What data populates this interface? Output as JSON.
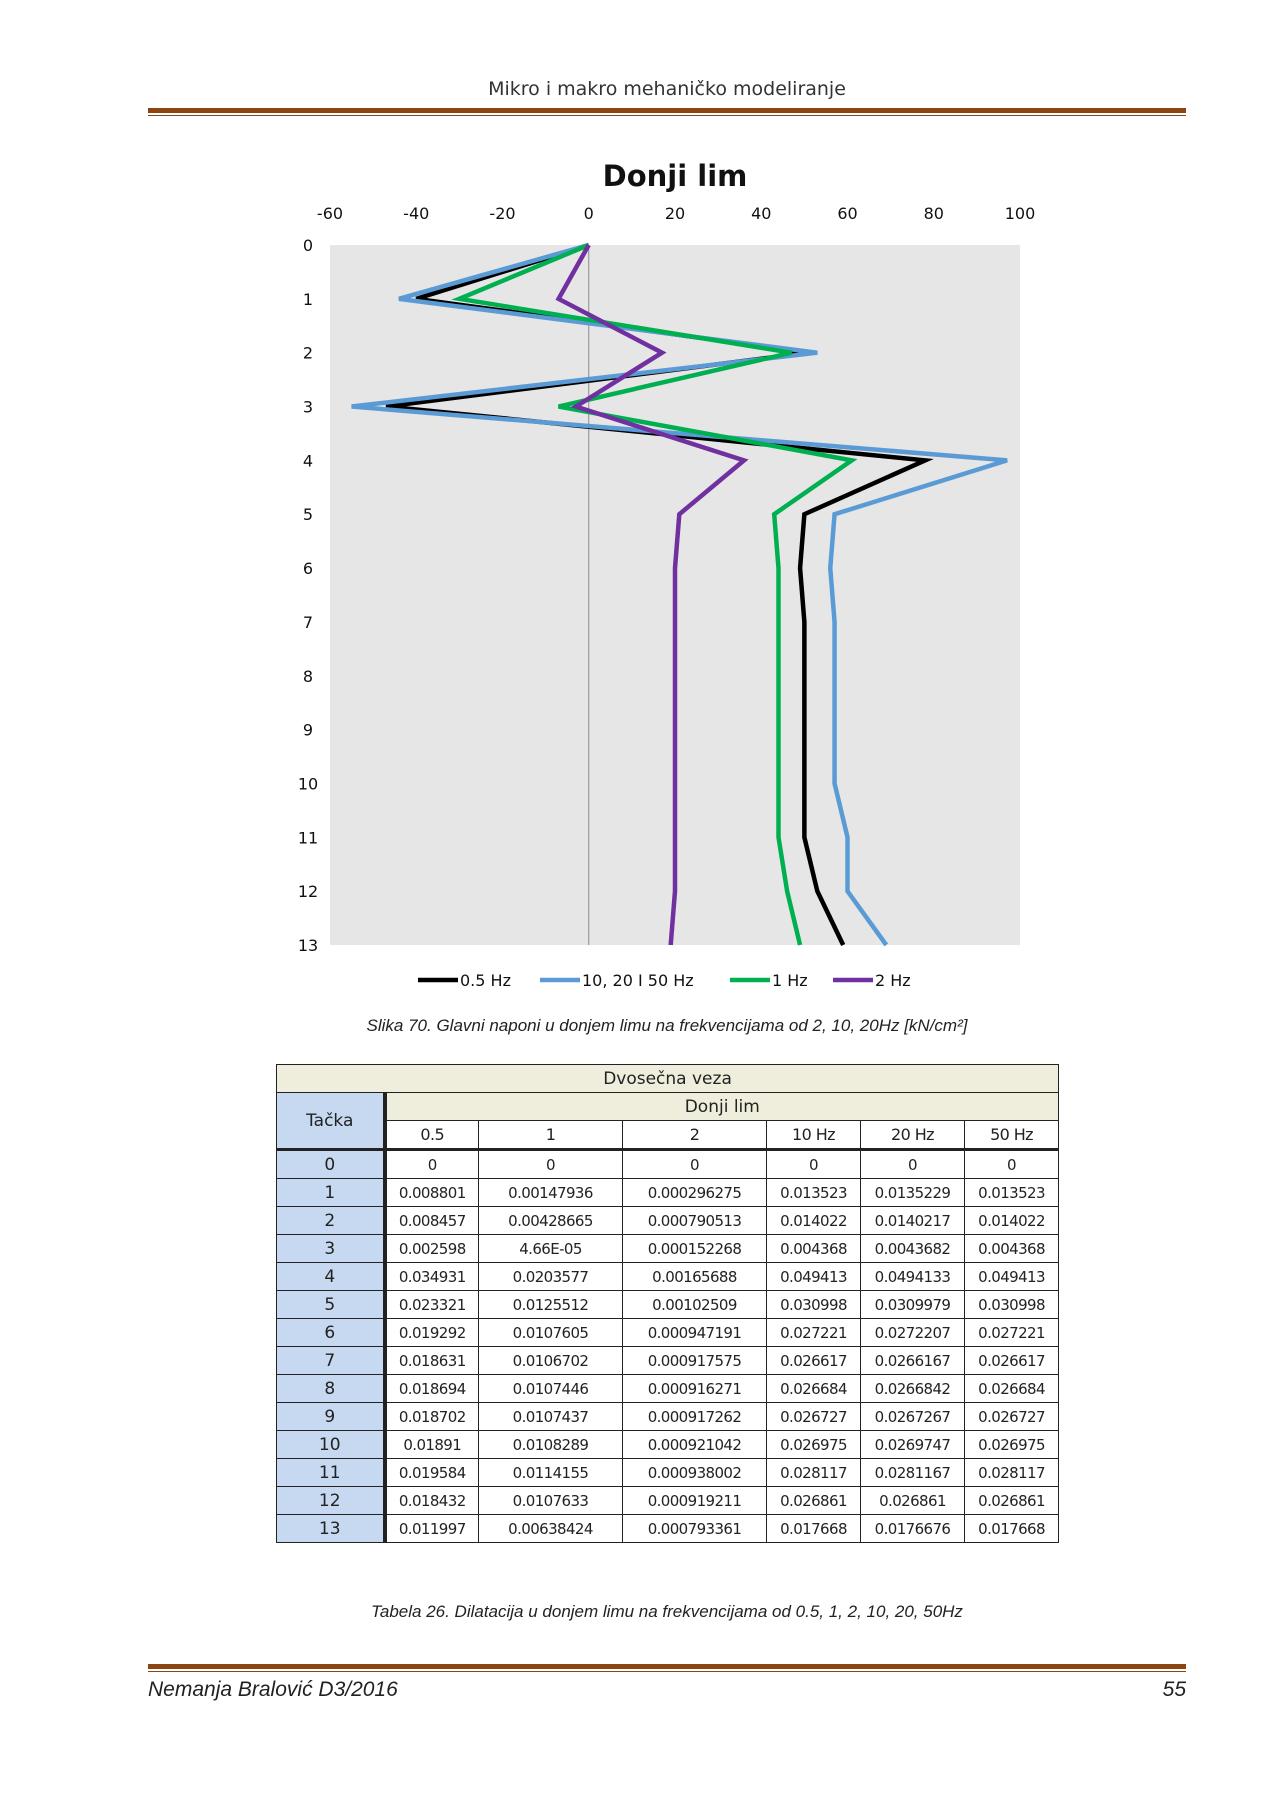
{
  "running_head": "Mikro i makro mehaničko modeliranje",
  "figure_caption": "Slika 70. Glavni naponi u donjem  limu na frekvencijama od 2, 10, 20Hz  [kN/cm²]",
  "chart_data": {
    "type": "line",
    "orientation": "vertical-profile",
    "title": "Donji lim",
    "xlabel": "",
    "ylabel": "",
    "x_axis_position": "top",
    "xlim": [
      -60,
      100
    ],
    "x_ticks": [
      "-60",
      "-40",
      "-20",
      "0",
      "20",
      "40",
      "60",
      "80",
      "100"
    ],
    "y_ticks": [
      "0",
      "1",
      "2",
      "3",
      "4",
      "5",
      "6",
      "7",
      "8",
      "9",
      "10",
      "11",
      "12",
      "13"
    ],
    "ylim": [
      0,
      13
    ],
    "y_inverted": true,
    "grid": false,
    "plot_background": "#e6e6e6",
    "legend_position": "bottom",
    "points": [
      0,
      1,
      2,
      3,
      4,
      5,
      6,
      7,
      8,
      9,
      10,
      11,
      12,
      13
    ],
    "series": [
      {
        "name": "0.5 Hz",
        "color": "#000000",
        "values": [
          0,
          -40,
          51,
          -47,
          78,
          50,
          49,
          50,
          50,
          50,
          50,
          50,
          53,
          59
        ]
      },
      {
        "name": "10, 20 I 50 Hz",
        "color": "#5b9bd5",
        "values": [
          0,
          -44,
          53,
          -55,
          97,
          57,
          56,
          57,
          57,
          57,
          57,
          60,
          60,
          69
        ]
      },
      {
        "name": "1 Hz",
        "color": "#00b050",
        "values": [
          0,
          -30,
          47,
          -7,
          61,
          43,
          44,
          44,
          44,
          44,
          44,
          44,
          46,
          49
        ]
      },
      {
        "name": "2 Hz",
        "color": "#7030a0",
        "values": [
          0,
          -7,
          17,
          -3,
          36,
          21,
          20,
          20,
          20,
          20,
          20,
          20,
          20,
          19
        ]
      }
    ]
  },
  "table": {
    "group_header": "Dvosečna veza",
    "row_header": "Tačka",
    "sub_header": "Donji lim",
    "columns": [
      "0.5",
      "1",
      "2",
      "10 Hz",
      "20 Hz",
      "50 Hz"
    ],
    "rows": [
      [
        "0",
        "0",
        "0",
        "0",
        "0",
        "0",
        "0"
      ],
      [
        "1",
        "0.008801",
        "0.00147936",
        "0.000296275",
        "0.013523",
        "0.0135229",
        "0.013523"
      ],
      [
        "2",
        "0.008457",
        "0.00428665",
        "0.000790513",
        "0.014022",
        "0.0140217",
        "0.014022"
      ],
      [
        "3",
        "0.002598",
        "4.66E-05",
        "0.000152268",
        "0.004368",
        "0.0043682",
        "0.004368"
      ],
      [
        "4",
        "0.034931",
        "0.0203577",
        "0.00165688",
        "0.049413",
        "0.0494133",
        "0.049413"
      ],
      [
        "5",
        "0.023321",
        "0.0125512",
        "0.00102509",
        "0.030998",
        "0.0309979",
        "0.030998"
      ],
      [
        "6",
        "0.019292",
        "0.0107605",
        "0.000947191",
        "0.027221",
        "0.0272207",
        "0.027221"
      ],
      [
        "7",
        "0.018631",
        "0.0106702",
        "0.000917575",
        "0.026617",
        "0.0266167",
        "0.026617"
      ],
      [
        "8",
        "0.018694",
        "0.0107446",
        "0.000916271",
        "0.026684",
        "0.0266842",
        "0.026684"
      ],
      [
        "9",
        "0.018702",
        "0.0107437",
        "0.000917262",
        "0.026727",
        "0.0267267",
        "0.026727"
      ],
      [
        "10",
        "0.01891",
        "0.0108289",
        "0.000921042",
        "0.026975",
        "0.0269747",
        "0.026975"
      ],
      [
        "11",
        "0.019584",
        "0.0114155",
        "0.000938002",
        "0.028117",
        "0.0281167",
        "0.028117"
      ],
      [
        "12",
        "0.018432",
        "0.0107633",
        "0.000919211",
        "0.026861",
        "0.026861",
        "0.026861"
      ],
      [
        "13",
        "0.011997",
        "0.00638424",
        "0.000793361",
        "0.017668",
        "0.0176676",
        "0.017668"
      ]
    ]
  },
  "table_caption": "Tabela 26. Dilatacija u donjem limu na frekvencijama od 0.5, 1, 2, 10, 20, 50Hz",
  "footer": {
    "author": "Nemanja Bralović D3/2016",
    "page_number": "55"
  }
}
